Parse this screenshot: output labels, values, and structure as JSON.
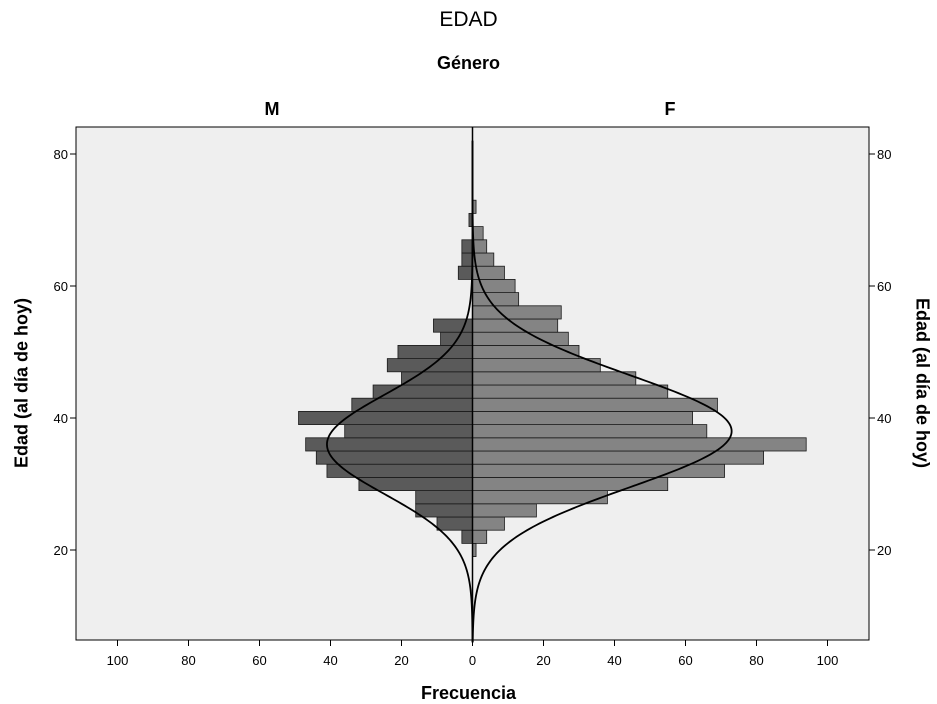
{
  "chart_data": {
    "type": "bar",
    "orientation": "population-pyramid-horizontal",
    "title": "EDAD",
    "subtitle": "Género",
    "xlabel": "Frecuencia",
    "ylabel": "Edad (al día de hoy)",
    "xlim": [
      0,
      110
    ],
    "ylim": [
      6,
      84
    ],
    "x_ticks": [
      "100",
      "80",
      "60",
      "40",
      "20",
      "0",
      "20",
      "40",
      "60",
      "80",
      "100"
    ],
    "y_ticks": [
      "20",
      "40",
      "60",
      "80"
    ],
    "bin_width": 2,
    "bin_starts": [
      19,
      21,
      23,
      25,
      27,
      29,
      31,
      33,
      35,
      37,
      39,
      41,
      43,
      45,
      47,
      49,
      51,
      53,
      55,
      57,
      59,
      61,
      63,
      65,
      67,
      69,
      71
    ],
    "series": [
      {
        "name": "M",
        "side": "left",
        "color": "#5a5a5a",
        "values": [
          0,
          3,
          10,
          16,
          16,
          32,
          41,
          44,
          47,
          36,
          49,
          34,
          28,
          20,
          24,
          21,
          9,
          11,
          0,
          0,
          0,
          4,
          3,
          3,
          0,
          1,
          0
        ]
      },
      {
        "name": "F",
        "side": "right",
        "color": "#848484",
        "values": [
          1,
          4,
          9,
          18,
          38,
          55,
          71,
          82,
          94,
          66,
          62,
          69,
          55,
          46,
          36,
          30,
          27,
          24,
          25,
          13,
          12,
          9,
          6,
          4,
          3,
          0,
          1
        ]
      }
    ],
    "normal_curves": [
      {
        "series": "M",
        "mean": 36,
        "sd": 7.5,
        "peak": 41
      },
      {
        "series": "F",
        "mean": 38,
        "sd": 8.5,
        "peak": 73
      }
    ],
    "colors": {
      "background": "#efefef",
      "outline": "#000000"
    }
  }
}
